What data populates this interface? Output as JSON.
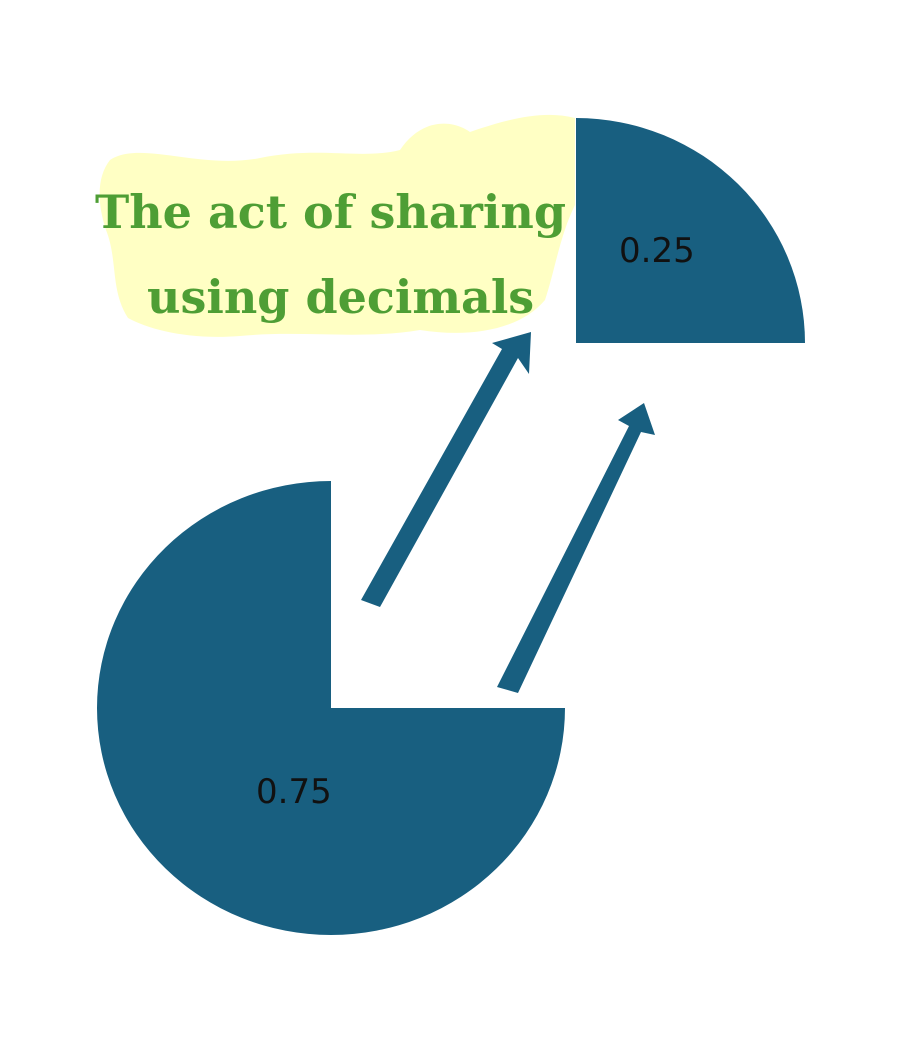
{
  "title": {
    "line1": "The act of sharing",
    "line2": "using decimals"
  },
  "pieces": {
    "large": {
      "label": "0.75",
      "fraction": 0.75
    },
    "small": {
      "label": "0.25",
      "fraction": 0.25
    }
  },
  "colors": {
    "piece_fill": "#185f80",
    "arrow_fill": "#185f80",
    "title_text": "#4e9e35",
    "title_highlight": "#ffffc4",
    "label_text": "#111111",
    "background": "#ffffff"
  }
}
